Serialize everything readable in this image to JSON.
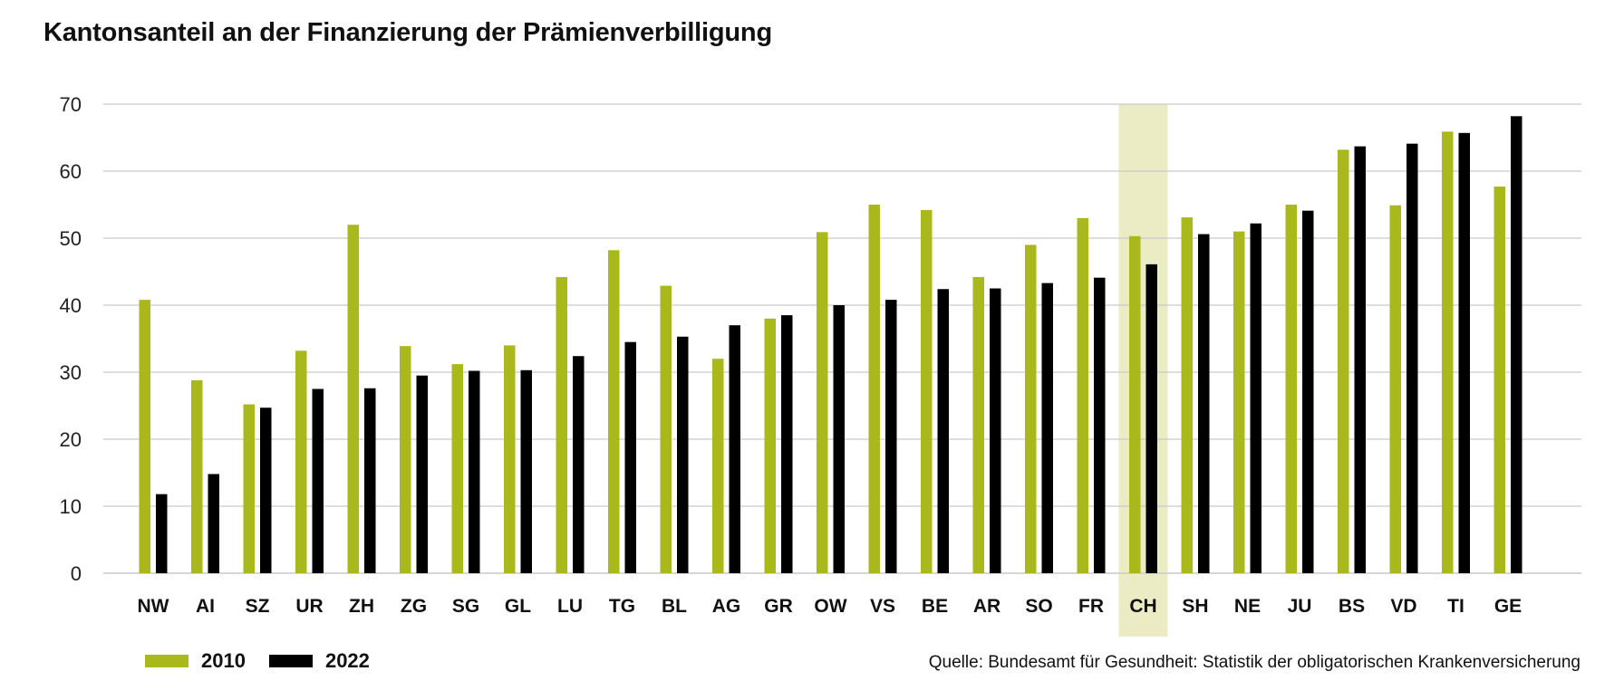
{
  "chart_data": {
    "type": "bar",
    "title": "Kantonsanteil an der Finanzierung der Prämienverbilligung",
    "categories": [
      "NW",
      "AI",
      "SZ",
      "UR",
      "ZH",
      "ZG",
      "SG",
      "GL",
      "LU",
      "TG",
      "BL",
      "AG",
      "GR",
      "OW",
      "VS",
      "BE",
      "AR",
      "SO",
      "FR",
      "CH",
      "SH",
      "NE",
      "JU",
      "BS",
      "VD",
      "TI",
      "GE"
    ],
    "series": [
      {
        "name": "2010",
        "color": "#a9b81b",
        "values": [
          40.8,
          28.8,
          25.2,
          33.2,
          52.0,
          33.9,
          31.2,
          34.0,
          44.2,
          48.2,
          42.9,
          32.0,
          38.0,
          50.9,
          55.0,
          54.2,
          44.2,
          49.0,
          53.0,
          50.3,
          53.1,
          51.0,
          55.0,
          63.2,
          54.9,
          65.9,
          57.7
        ]
      },
      {
        "name": "2022",
        "color": "#000000",
        "values": [
          11.8,
          14.8,
          24.7,
          27.5,
          27.6,
          29.5,
          30.2,
          30.3,
          32.4,
          34.5,
          35.3,
          37.0,
          38.5,
          40.0,
          40.8,
          42.4,
          42.5,
          43.3,
          44.1,
          46.1,
          50.6,
          52.2,
          54.1,
          63.7,
          64.1,
          65.7,
          68.2
        ]
      }
    ],
    "xlabel": "",
    "ylabel": "",
    "ylim": [
      0,
      70
    ],
    "yticks": [
      "0",
      "10",
      "20",
      "30",
      "40",
      "50",
      "60",
      "70"
    ],
    "grid": true,
    "highlight_category": "CH",
    "highlight_color": "#ebebc4",
    "legend_placement": "bottom-left"
  },
  "legend": {
    "items": [
      {
        "label": "2010",
        "color": "#a9b81b"
      },
      {
        "label": "2022",
        "color": "#000000"
      }
    ]
  },
  "source": "Quelle: Bundesamt für Gesundheit: Statistik der obligatorischen Krankenversicherung"
}
